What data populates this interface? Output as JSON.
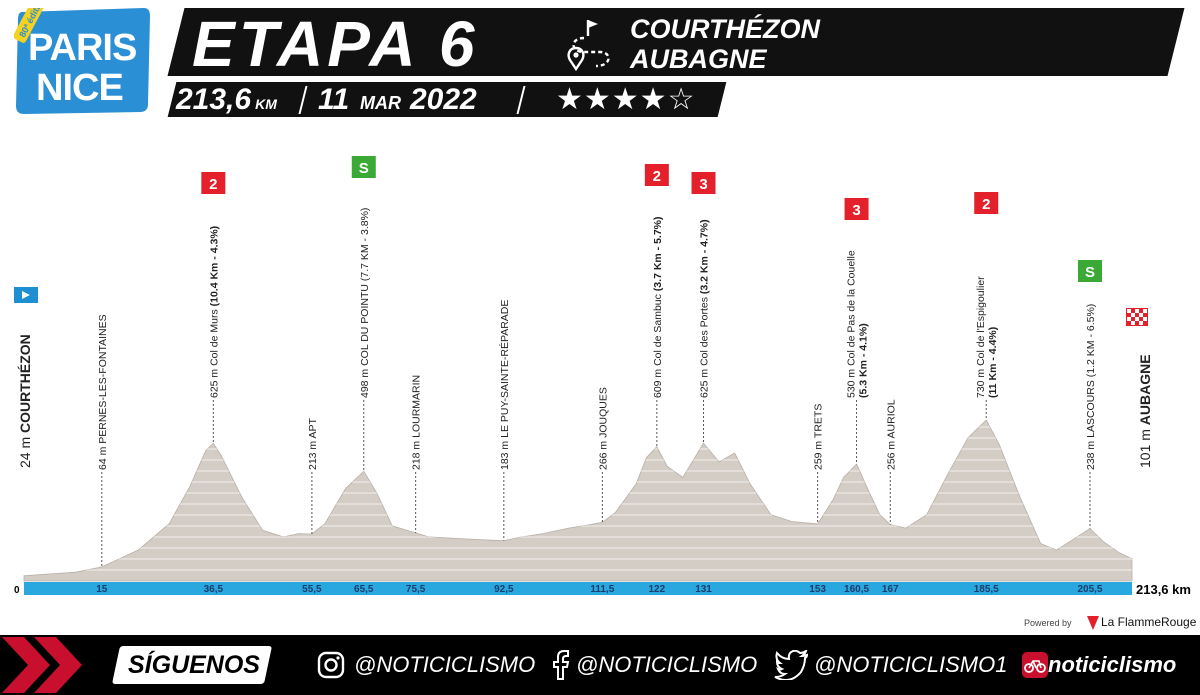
{
  "logo": {
    "edition": "80ª édition",
    "line1": "PARIS",
    "line2": "NICE"
  },
  "header": {
    "stage": "ETAPA 6",
    "start": "COURTHÉZON",
    "finish": "AUBAGNE",
    "distance": "213,6",
    "distance_unit": "KM",
    "date_day": "11",
    "date_month": "MAR",
    "date_year": "2022",
    "stars_filled": 4,
    "stars_total": 5,
    "stars_text": "★★★★☆"
  },
  "colors": {
    "banner": "#111111",
    "profile": "#d4cdc5",
    "axis": "#29a8e0",
    "cat2": "#e4202b",
    "sprint": "#3ba935",
    "start_flag": "#1e8fd0"
  },
  "chart_data": {
    "type": "area",
    "x_unit": "km",
    "y_unit": "m",
    "total_label": "213,6 km",
    "origin_label": "0",
    "profile": [
      [
        0,
        24
      ],
      [
        10,
        40
      ],
      [
        15,
        64
      ],
      [
        22,
        140
      ],
      [
        28,
        260
      ],
      [
        32,
        430
      ],
      [
        35,
        590
      ],
      [
        36.5,
        625
      ],
      [
        38,
        570
      ],
      [
        42,
        380
      ],
      [
        46,
        230
      ],
      [
        50,
        200
      ],
      [
        53,
        215
      ],
      [
        55.5,
        213
      ],
      [
        58,
        260
      ],
      [
        62,
        420
      ],
      [
        65.5,
        498
      ],
      [
        68,
        400
      ],
      [
        71,
        250
      ],
      [
        75.5,
        218
      ],
      [
        78,
        200
      ],
      [
        82,
        195
      ],
      [
        86,
        190
      ],
      [
        90,
        185
      ],
      [
        92.5,
        183
      ],
      [
        96,
        200
      ],
      [
        100,
        215
      ],
      [
        105,
        240
      ],
      [
        109,
        255
      ],
      [
        111.5,
        266
      ],
      [
        114,
        310
      ],
      [
        118,
        440
      ],
      [
        120,
        560
      ],
      [
        122,
        609
      ],
      [
        124,
        520
      ],
      [
        127,
        470
      ],
      [
        131,
        625
      ],
      [
        134,
        540
      ],
      [
        137,
        580
      ],
      [
        140,
        440
      ],
      [
        144,
        300
      ],
      [
        148,
        270
      ],
      [
        153,
        259
      ],
      [
        156,
        370
      ],
      [
        158,
        470
      ],
      [
        160.5,
        530
      ],
      [
        163,
        400
      ],
      [
        165,
        300
      ],
      [
        167,
        256
      ],
      [
        170,
        240
      ],
      [
        174,
        300
      ],
      [
        178,
        480
      ],
      [
        182,
        650
      ],
      [
        185.5,
        730
      ],
      [
        188,
        620
      ],
      [
        192,
        380
      ],
      [
        196,
        170
      ],
      [
        199,
        140
      ],
      [
        203,
        200
      ],
      [
        205.5,
        238
      ],
      [
        208,
        180
      ],
      [
        211,
        130
      ],
      [
        213.6,
        101
      ]
    ],
    "km_ticks": [
      "15",
      "36,5",
      "55,5",
      "65,5",
      "75,5",
      "92,5",
      "111,5",
      "122",
      "131",
      "153",
      "160,5",
      "167",
      "185,5",
      "205,5"
    ],
    "points": [
      {
        "km": 0,
        "label": "24 m COURTHÉZON",
        "label_bold": "COURTHÉZON",
        "label_pre": "24 m ",
        "label_post": "",
        "marker": "start"
      },
      {
        "km": 15,
        "label_pre": "64 m PERNES-LES-FONTAINES",
        "label_bold": "",
        "label_post": "",
        "marker": "none"
      },
      {
        "km": 36.5,
        "label_pre": "625 m Col de Murs ",
        "label_bold": "(10.4 Km - 4.3%)",
        "label_post": "",
        "marker": "climb",
        "category": "2"
      },
      {
        "km": 55.5,
        "label_pre": "213 m APT",
        "label_bold": "",
        "label_post": "",
        "marker": "none"
      },
      {
        "km": 65.5,
        "label_pre": "498 m COL DU POINTU (7.7 KM - 3.8%)",
        "label_bold": "",
        "label_post": "",
        "marker": "sprint",
        "category": "S"
      },
      {
        "km": 75.5,
        "label_pre": "218 m LOURMARIN",
        "label_bold": "",
        "label_post": "",
        "marker": "none"
      },
      {
        "km": 92.5,
        "label_pre": "183 m LE PUY-SAINTE-RÉPARADE",
        "label_bold": "",
        "label_post": "",
        "marker": "none"
      },
      {
        "km": 111.5,
        "label_pre": "266 m JOUQUES",
        "label_bold": "",
        "label_post": "",
        "marker": "none"
      },
      {
        "km": 122,
        "label_pre": "609 m Col de Sambuc ",
        "label_bold": "(3.7 Km - 5.7%)",
        "label_post": "",
        "marker": "climb",
        "category": "2"
      },
      {
        "km": 131,
        "label_pre": "625 m Col des Portes ",
        "label_bold": "(3.2 Km - 4.7%)",
        "label_post": "",
        "marker": "climb",
        "category": "3"
      },
      {
        "km": 153,
        "label_pre": "259 m TRETS",
        "label_bold": "",
        "label_post": "",
        "marker": "none"
      },
      {
        "km": 160.5,
        "label_pre": "530 m Col de Pas de la Couelle",
        "label_bold": "(5.3 Km - 4.1%)",
        "label_post": "",
        "marker": "climb",
        "category": "3",
        "two_line": true
      },
      {
        "km": 167,
        "label_pre": "256 m AURIOL",
        "label_bold": "",
        "label_post": "",
        "marker": "none"
      },
      {
        "km": 185.5,
        "label_pre": "730 m Col de l'Espigoulier",
        "label_bold": "(11 Km - 4.4%)",
        "label_post": "",
        "marker": "climb",
        "category": "2",
        "two_line": true
      },
      {
        "km": 205.5,
        "label_pre": "238 m LASCOURS (1.2 KM - 6.5%)",
        "label_bold": "",
        "label_post": "",
        "marker": "sprint",
        "category": "S"
      },
      {
        "km": 213.6,
        "label_pre": "101 m ",
        "label_bold": "AUBAGNE",
        "label_post": "",
        "marker": "finish"
      }
    ]
  },
  "credit": {
    "powered": "Powered by",
    "name": "La FlammeRouge"
  },
  "footer": {
    "follow": "SÍGUENOS",
    "instagram": "@NOTICICLISMO",
    "facebook": "@NOTICICLISMO",
    "twitter": "@NOTICICLISMO1",
    "brand": "noticiclismo"
  }
}
